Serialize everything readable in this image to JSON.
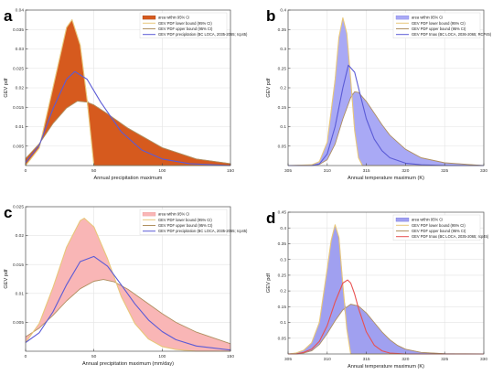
{
  "chart_data": [
    {
      "panel_label": "a",
      "type": "area",
      "xlabel": "Annual precipitation maximum",
      "ylabel": "GEV pdf",
      "xlim": [
        0,
        150
      ],
      "ylim": [
        0,
        0.04
      ],
      "x_ticks": [
        0,
        50,
        100,
        150
      ],
      "y_ticks": [
        0.005,
        0.01,
        0.015,
        0.02,
        0.025,
        0.03,
        0.035,
        0.04
      ],
      "y_tick_labels": [
        "0.005",
        "0.01",
        "0.015",
        "0.02",
        "0.025",
        "0.03",
        "0.035",
        "0.04"
      ],
      "grid": true,
      "legend_position": "top-right",
      "band_color": "#d65a1e",
      "band_edge_color": "#8b2e00",
      "series": [
        {
          "name": "area within 95% CI",
          "role": "band",
          "color": "#d65a1e"
        },
        {
          "name": "GEV PDF lower bound (95% CI)",
          "role": "lower",
          "color": "#e8c77a",
          "x": [
            0,
            10,
            20,
            30,
            34,
            40,
            45,
            50,
            60,
            75,
            100,
            125,
            150
          ],
          "y": [
            0.0,
            0.0045,
            0.02,
            0.0355,
            0.0375,
            0.031,
            0.017,
            0.0,
            0.0,
            0.0,
            0.0,
            0.0,
            0.0
          ]
        },
        {
          "name": "GEV PDF upper bound (95% CI)",
          "role": "upper",
          "color": "#b09060",
          "x": [
            0,
            10,
            20,
            30,
            38,
            45,
            50,
            60,
            75,
            100,
            125,
            150
          ],
          "y": [
            0.0018,
            0.0056,
            0.0108,
            0.0148,
            0.0166,
            0.0163,
            0.0156,
            0.0133,
            0.0096,
            0.0046,
            0.0017,
            0.0005
          ]
        },
        {
          "name": "GEV PDF precipitation (BC LOCA, 2035-2065; rcp45)",
          "role": "fit",
          "color": "#5b5bd6",
          "x": [
            0,
            10,
            20,
            30,
            36,
            45,
            55,
            70,
            85,
            100,
            120,
            150
          ],
          "y": [
            0.0008,
            0.0052,
            0.0146,
            0.0222,
            0.0242,
            0.0222,
            0.0163,
            0.0087,
            0.004,
            0.0017,
            0.0005,
            0.0
          ]
        }
      ]
    },
    {
      "panel_label": "b",
      "type": "area",
      "xlabel": "Annual temperature maximum (K)",
      "ylabel": "GEV pdf",
      "xlim": [
        305,
        330
      ],
      "ylim": [
        0,
        0.4
      ],
      "x_ticks": [
        305,
        310,
        315,
        320,
        325,
        330
      ],
      "y_ticks": [
        0.05,
        0.1,
        0.15,
        0.2,
        0.25,
        0.3,
        0.35,
        0.4
      ],
      "y_tick_labels": [
        "0.05",
        "0.1",
        "0.15",
        "0.2",
        "0.25",
        "0.3",
        "0.35",
        "0.4"
      ],
      "grid": true,
      "legend_position": "top-right",
      "band_color": "#a9a9f5",
      "band_edge_color": "#6c6ce0",
      "series": [
        {
          "name": "area within 95% CI",
          "role": "band",
          "color": "#a9a9f5"
        },
        {
          "name": "GEV PDF lower bound (95% CI)",
          "role": "lower",
          "color": "#e8c77a",
          "x": [
            305,
            308,
            309,
            310,
            311,
            311.5,
            312,
            312.5,
            313,
            313.5,
            314,
            314.5,
            330
          ],
          "y": [
            0.0,
            0.002,
            0.01,
            0.06,
            0.22,
            0.33,
            0.38,
            0.34,
            0.22,
            0.09,
            0.02,
            0.0,
            0.0
          ]
        },
        {
          "name": "GEV PDF upper bound (95% CI)",
          "role": "upper",
          "color": "#b09060",
          "x": [
            305,
            308,
            309,
            310,
            311,
            312,
            313,
            313.5,
            314,
            315,
            316,
            317,
            318,
            320,
            322,
            325,
            330
          ],
          "y": [
            0.0,
            0.0,
            0.003,
            0.015,
            0.055,
            0.12,
            0.175,
            0.19,
            0.188,
            0.165,
            0.135,
            0.105,
            0.078,
            0.042,
            0.02,
            0.007,
            0.0
          ]
        },
        {
          "name": "GEV PDF tmax (BC LOCA, 2036-2065; RCP45)",
          "role": "fit",
          "color": "#5b5bd6",
          "x": [
            305,
            308,
            309,
            310,
            311,
            312,
            312.7,
            313.5,
            314,
            315,
            316,
            317,
            318,
            320,
            322,
            325,
            330
          ],
          "y": [
            0.0,
            0.0,
            0.004,
            0.03,
            0.1,
            0.2,
            0.258,
            0.24,
            0.2,
            0.12,
            0.068,
            0.038,
            0.02,
            0.006,
            0.002,
            0.0,
            0.0
          ]
        }
      ]
    },
    {
      "panel_label": "c",
      "type": "area",
      "xlabel": "Annual precipitation maximum (mm/day)",
      "ylabel": "GEV pdf",
      "xlim": [
        0,
        150
      ],
      "ylim": [
        0,
        0.025
      ],
      "x_ticks": [
        0,
        50,
        100,
        150
      ],
      "y_ticks": [
        0.005,
        0.01,
        0.015,
        0.02,
        0.025
      ],
      "y_tick_labels": [
        "0.005",
        "0.01",
        "0.015",
        "0.02",
        "0.025"
      ],
      "grid": true,
      "legend_position": "top-right",
      "band_color": "#f9b6b6",
      "band_edge_color": "#e88a8a",
      "series": [
        {
          "name": "area within 95% CI",
          "role": "band",
          "color": "#f9b6b6"
        },
        {
          "name": "GEV PDF lower bound (95% CI)",
          "role": "lower",
          "color": "#e8c77a",
          "x": [
            0,
            10,
            20,
            30,
            40,
            43,
            50,
            60,
            70,
            80,
            90,
            100,
            110,
            125,
            150
          ],
          "y": [
            0.0015,
            0.0048,
            0.011,
            0.018,
            0.0226,
            0.023,
            0.0215,
            0.016,
            0.0095,
            0.0048,
            0.0021,
            0.0008,
            0.0003,
            0.0,
            0.0
          ]
        },
        {
          "name": "GEV PDF upper bound (95% CI)",
          "role": "upper",
          "color": "#b09060",
          "x": [
            0,
            10,
            20,
            30,
            40,
            50,
            57,
            65,
            75,
            90,
            100,
            110,
            125,
            150
          ],
          "y": [
            0.0025,
            0.004,
            0.0062,
            0.0087,
            0.0108,
            0.0121,
            0.0124,
            0.012,
            0.0107,
            0.0082,
            0.0065,
            0.005,
            0.0033,
            0.0013
          ]
        },
        {
          "name": "GEV PDF precipitation (BC LOCA, 2035-2065; rcp45)",
          "role": "fit",
          "color": "#5b5bd6",
          "x": [
            0,
            10,
            20,
            30,
            40,
            50,
            60,
            70,
            80,
            90,
            100,
            110,
            125,
            150
          ],
          "y": [
            0.0015,
            0.0032,
            0.0068,
            0.0115,
            0.0155,
            0.0164,
            0.0147,
            0.0115,
            0.0082,
            0.0054,
            0.0034,
            0.002,
            0.0009,
            0.0002
          ]
        }
      ]
    },
    {
      "panel_label": "d",
      "type": "area",
      "xlabel": "Annual temperature maximum (K)",
      "ylabel": "GEV pdf",
      "xlim": [
        305,
        330
      ],
      "ylim": [
        0,
        0.45
      ],
      "x_ticks": [
        305,
        310,
        315,
        320,
        325,
        330
      ],
      "y_ticks": [
        0.05,
        0.1,
        0.15,
        0.2,
        0.25,
        0.3,
        0.35,
        0.4,
        0.45
      ],
      "y_tick_labels": [
        "0.05",
        "0.1",
        "0.15",
        "0.2",
        "0.25",
        "0.3",
        "0.35",
        "0.4",
        "0.45"
      ],
      "grid": true,
      "legend_position": "top-right",
      "band_color": "#a0a0f0",
      "band_edge_color": "#5a5ad8",
      "series": [
        {
          "name": "area within 95% CI",
          "role": "band",
          "color": "#a0a0f0"
        },
        {
          "name": "GEV PDF lower bound (95% CI)",
          "role": "lower",
          "color": "#e8c77a",
          "x": [
            305,
            306,
            307,
            308,
            309,
            310,
            310.5,
            311,
            311.5,
            312,
            312.5,
            313,
            330
          ],
          "y": [
            0.0,
            0.003,
            0.012,
            0.035,
            0.1,
            0.27,
            0.36,
            0.41,
            0.37,
            0.22,
            0.08,
            0.0,
            0.0
          ]
        },
        {
          "name": "GEV PDF upper bound (95% CI)",
          "role": "upper",
          "color": "#b09060",
          "x": [
            305,
            306,
            307,
            308,
            309,
            310,
            311,
            312,
            313,
            314,
            315,
            316,
            317,
            318,
            319,
            320,
            322,
            325,
            330
          ],
          "y": [
            0.0,
            0.0,
            0.003,
            0.01,
            0.03,
            0.065,
            0.105,
            0.14,
            0.158,
            0.152,
            0.13,
            0.1,
            0.07,
            0.045,
            0.027,
            0.015,
            0.005,
            0.001,
            0.0
          ]
        },
        {
          "name": "GEV PDF tmax (BC LOCA, 2035-2065; rcp45)",
          "role": "fit",
          "color": "#e85050",
          "x": [
            305,
            306,
            307,
            308,
            309,
            310,
            311,
            312,
            312.6,
            313,
            313.5,
            314,
            315,
            316,
            317,
            318,
            320,
            325,
            330
          ],
          "y": [
            0.0,
            0.0,
            0.005,
            0.015,
            0.04,
            0.09,
            0.165,
            0.225,
            0.235,
            0.225,
            0.19,
            0.145,
            0.07,
            0.028,
            0.01,
            0.003,
            0.0,
            0.0,
            0.0
          ]
        }
      ]
    }
  ]
}
